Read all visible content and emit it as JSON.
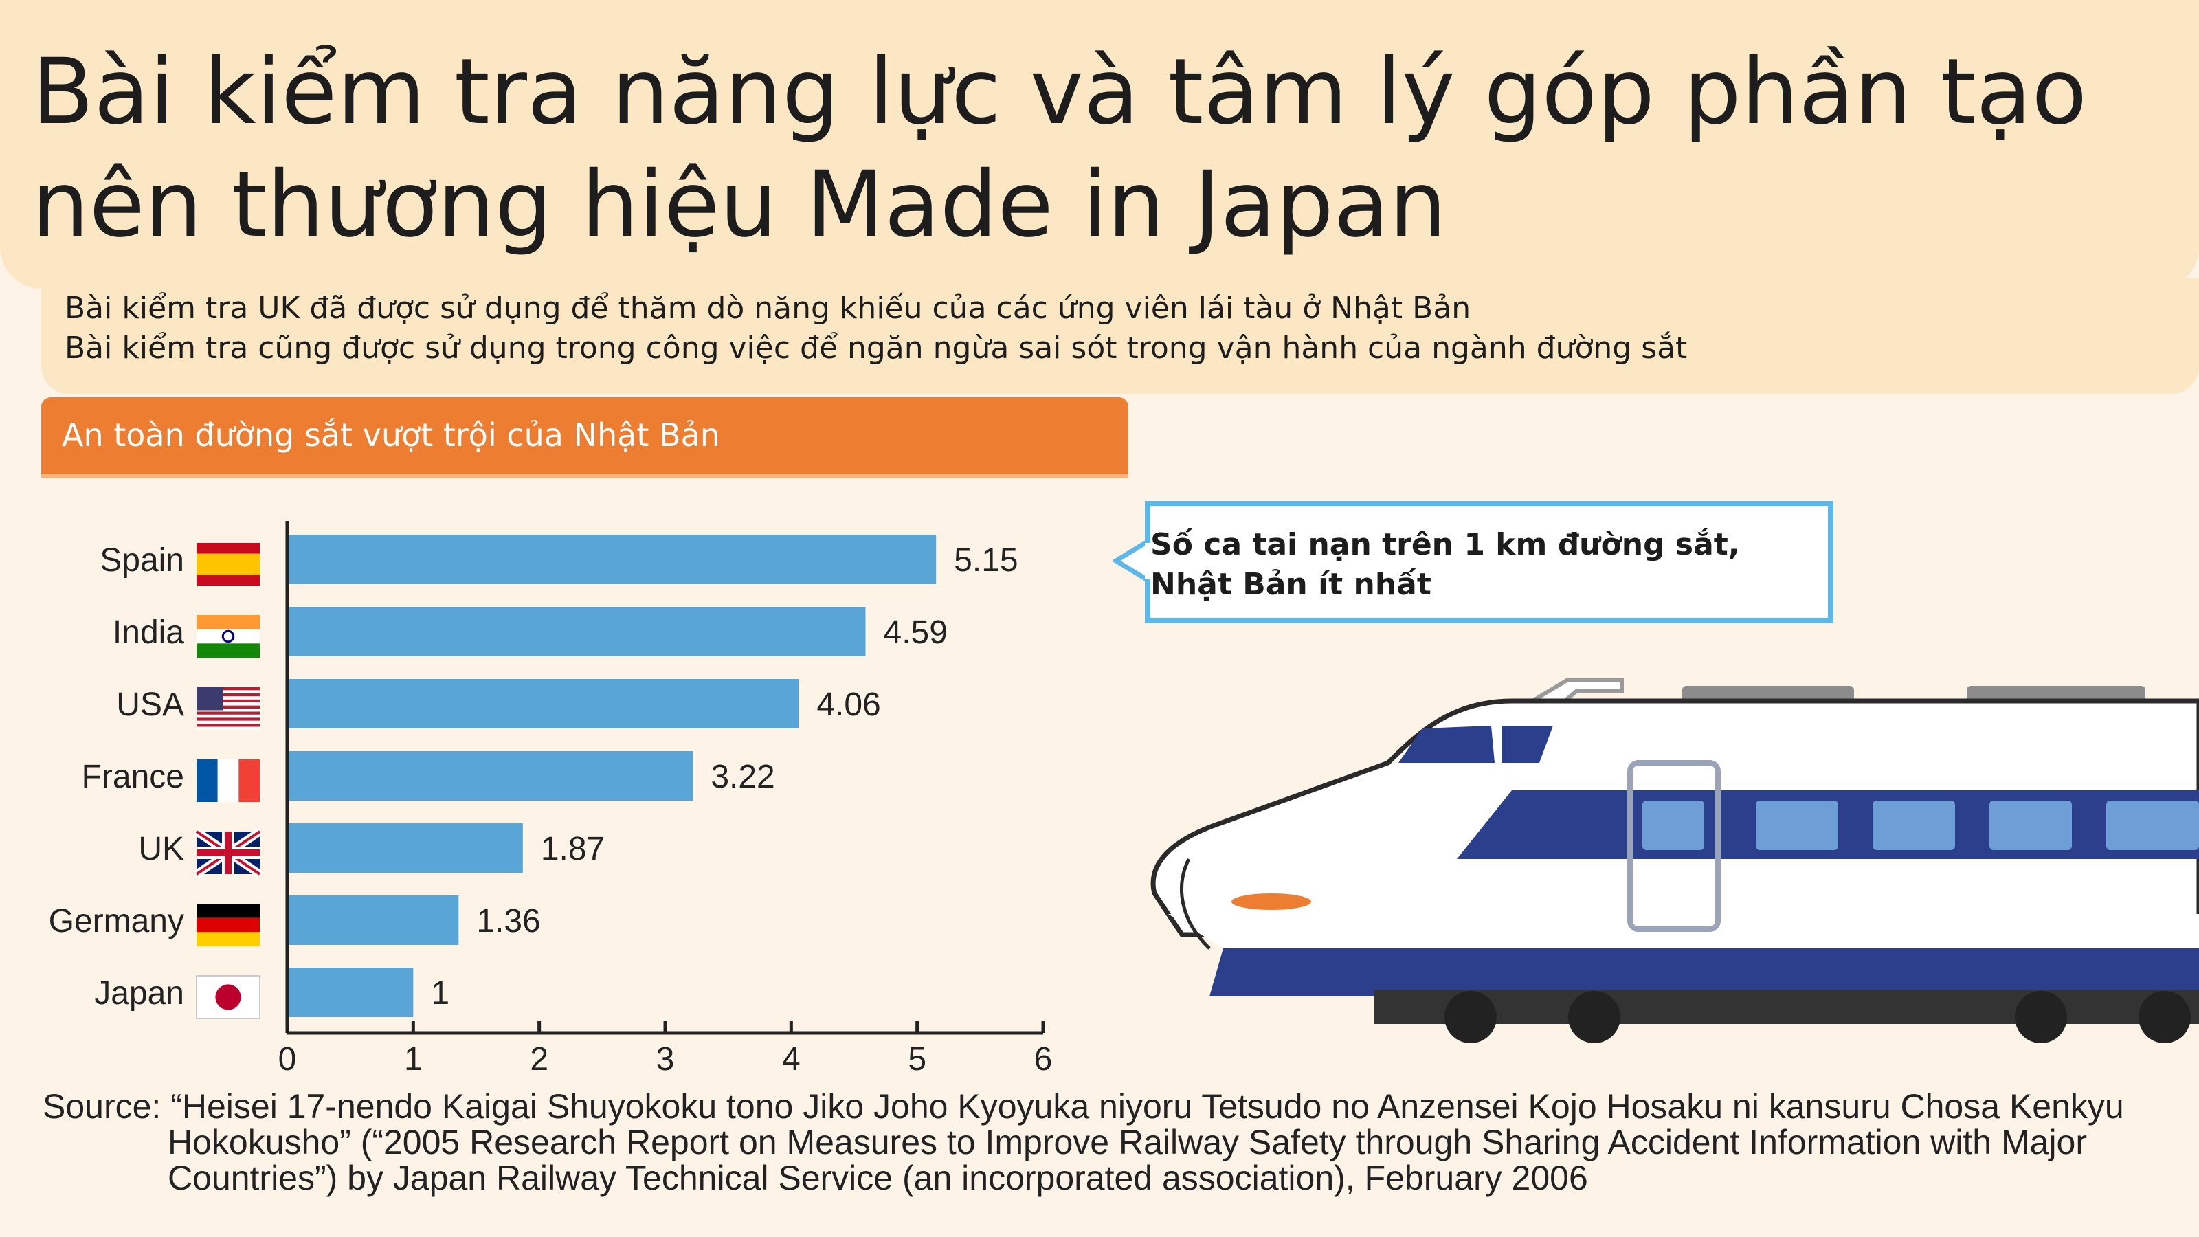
{
  "header": {
    "title": "Bài kiểm tra năng lực và tâm lý góp phần tạo nên thương hiệu Made in Japan",
    "subtitle_line1": "Bài kiểm tra UK đã được sử dụng để thăm dò năng khiếu của các ứng viên lái tàu ở Nhật Bản",
    "subtitle_line2": "Bài kiểm tra cũng được sử dụng trong công việc để ngăn ngừa sai sót trong vận hành của ngành đường sắt"
  },
  "section_banner": "An toàn đường sắt vượt trội của Nhật Bản",
  "callout": "Số ca tai nạn trên 1 km đường sắt, Nhật Bản ít nhất",
  "source": {
    "line1": "Source: “Heisei 17-nendo Kaigai Shuyokoku tono Jiko Joho Kyoyuka niyoru Tetsudo no Anzensei Kojo Hosaku ni kansuru Chosa Kenkyu",
    "line2": "Hokokusho” (“2005 Research Report on Measures to Improve Railway Safety through Sharing Accident Information with Major Countries”) by Japan Railway Technical Service (an incorporated association), February 2006"
  },
  "colors": {
    "bar": "#58a5d6",
    "banner": "#ed7d31",
    "callout_border": "#5bb8e8",
    "header_band": "#fbe7c3"
  },
  "chart_data": {
    "type": "bar",
    "orientation": "horizontal",
    "categories": [
      "Spain",
      "India",
      "USA",
      "France",
      "UK",
      "Germany",
      "Japan"
    ],
    "values": [
      5.15,
      4.59,
      4.06,
      3.22,
      1.87,
      1.36,
      1
    ],
    "value_labels": [
      "5.15",
      "4.59",
      "4.06",
      "3.22",
      "1.87",
      "1.36",
      "1"
    ],
    "flags": [
      "spain-flag",
      "india-flag",
      "usa-flag",
      "france-flag",
      "uk-flag",
      "germany-flag",
      "japan-flag"
    ],
    "xlim": [
      0,
      6
    ],
    "xticks": [
      "0",
      "1",
      "2",
      "3",
      "4",
      "5",
      "6"
    ],
    "grid": false
  }
}
